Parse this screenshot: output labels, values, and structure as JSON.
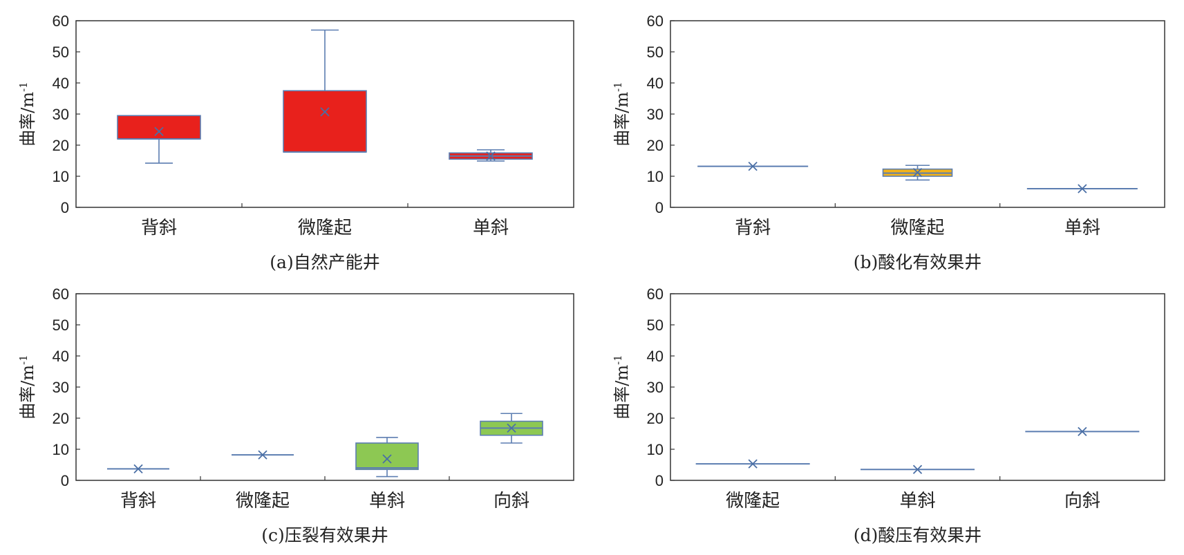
{
  "chart_data": [
    {
      "type": "box",
      "caption": "(a)自然产能井",
      "ylabel": "曲率/m-1",
      "ylim": [
        0,
        60
      ],
      "yticks": [
        0,
        10,
        20,
        30,
        40,
        50,
        60
      ],
      "grid": false,
      "fill_color": "#e8211c",
      "categories": [
        "背斜",
        "微隆起",
        "单斜"
      ],
      "boxes": [
        {
          "min": 14.2,
          "q1": 22.0,
          "median": 22.0,
          "q3": 29.5,
          "max": 29.5,
          "mean": 24.4
        },
        {
          "min": 17.8,
          "q1": 17.8,
          "median": 17.8,
          "q3": 37.5,
          "max": 57.0,
          "mean": 30.7
        },
        {
          "min": 14.9,
          "q1": 15.5,
          "median": 16.5,
          "q3": 17.5,
          "max": 18.5,
          "mean": 16.5
        }
      ]
    },
    {
      "type": "box",
      "caption": "(b)酸化有效果井",
      "ylabel": "曲率/m-1",
      "ylim": [
        0,
        60
      ],
      "yticks": [
        0,
        10,
        20,
        30,
        40,
        50,
        60
      ],
      "grid": false,
      "fill_color": "#f2b31a",
      "categories": [
        "背斜",
        "微隆起",
        "单斜"
      ],
      "boxes": [
        {
          "min": 13.2,
          "q1": 13.2,
          "median": 13.2,
          "q3": 13.2,
          "max": 13.2,
          "mean": 13.2
        },
        {
          "min": 8.8,
          "q1": 10.0,
          "median": 11.0,
          "q3": 12.3,
          "max": 13.5,
          "mean": 11.2
        },
        {
          "min": 6.0,
          "q1": 6.0,
          "median": 6.0,
          "q3": 6.0,
          "max": 6.0,
          "mean": 6.0
        }
      ]
    },
    {
      "type": "box",
      "caption": "(c)压裂有效果井",
      "ylabel": "曲率/m-1",
      "ylim": [
        0,
        60
      ],
      "yticks": [
        0,
        10,
        20,
        30,
        40,
        50,
        60
      ],
      "grid": false,
      "fill_color": "#8dc853",
      "categories": [
        "背斜",
        "微隆起",
        "单斜",
        "向斜"
      ],
      "boxes": [
        {
          "min": 3.7,
          "q1": 3.7,
          "median": 3.7,
          "q3": 3.7,
          "max": 3.7,
          "mean": 3.7
        },
        {
          "min": 8.2,
          "q1": 8.2,
          "median": 8.2,
          "q3": 8.2,
          "max": 8.2,
          "mean": 8.2
        },
        {
          "min": 1.2,
          "q1": 3.5,
          "median": 4.0,
          "q3": 12.0,
          "max": 13.8,
          "mean": 6.9
        },
        {
          "min": 12.0,
          "q1": 14.5,
          "median": 16.8,
          "q3": 19.0,
          "max": 21.5,
          "mean": 16.8
        }
      ]
    },
    {
      "type": "box",
      "caption": "(d)酸压有效果井",
      "ylabel": "曲率/m-1",
      "ylim": [
        0,
        60
      ],
      "yticks": [
        0,
        10,
        20,
        30,
        40,
        50,
        60
      ],
      "grid": false,
      "fill_color": "#4a6fa5",
      "categories": [
        "微隆起",
        "单斜",
        "向斜"
      ],
      "boxes": [
        {
          "min": 5.3,
          "q1": 5.3,
          "median": 5.3,
          "q3": 5.3,
          "max": 5.3,
          "mean": 5.3
        },
        {
          "min": 3.5,
          "q1": 3.5,
          "median": 3.5,
          "q3": 3.5,
          "max": 3.5,
          "mean": 3.5
        },
        {
          "min": 15.7,
          "q1": 15.7,
          "median": 15.7,
          "q3": 15.7,
          "max": 15.7,
          "mean": 15.7
        }
      ]
    }
  ],
  "colors": {
    "whisker": "#5b7db1",
    "mean_marker": "#4a6fa5",
    "axis": "#333333"
  }
}
